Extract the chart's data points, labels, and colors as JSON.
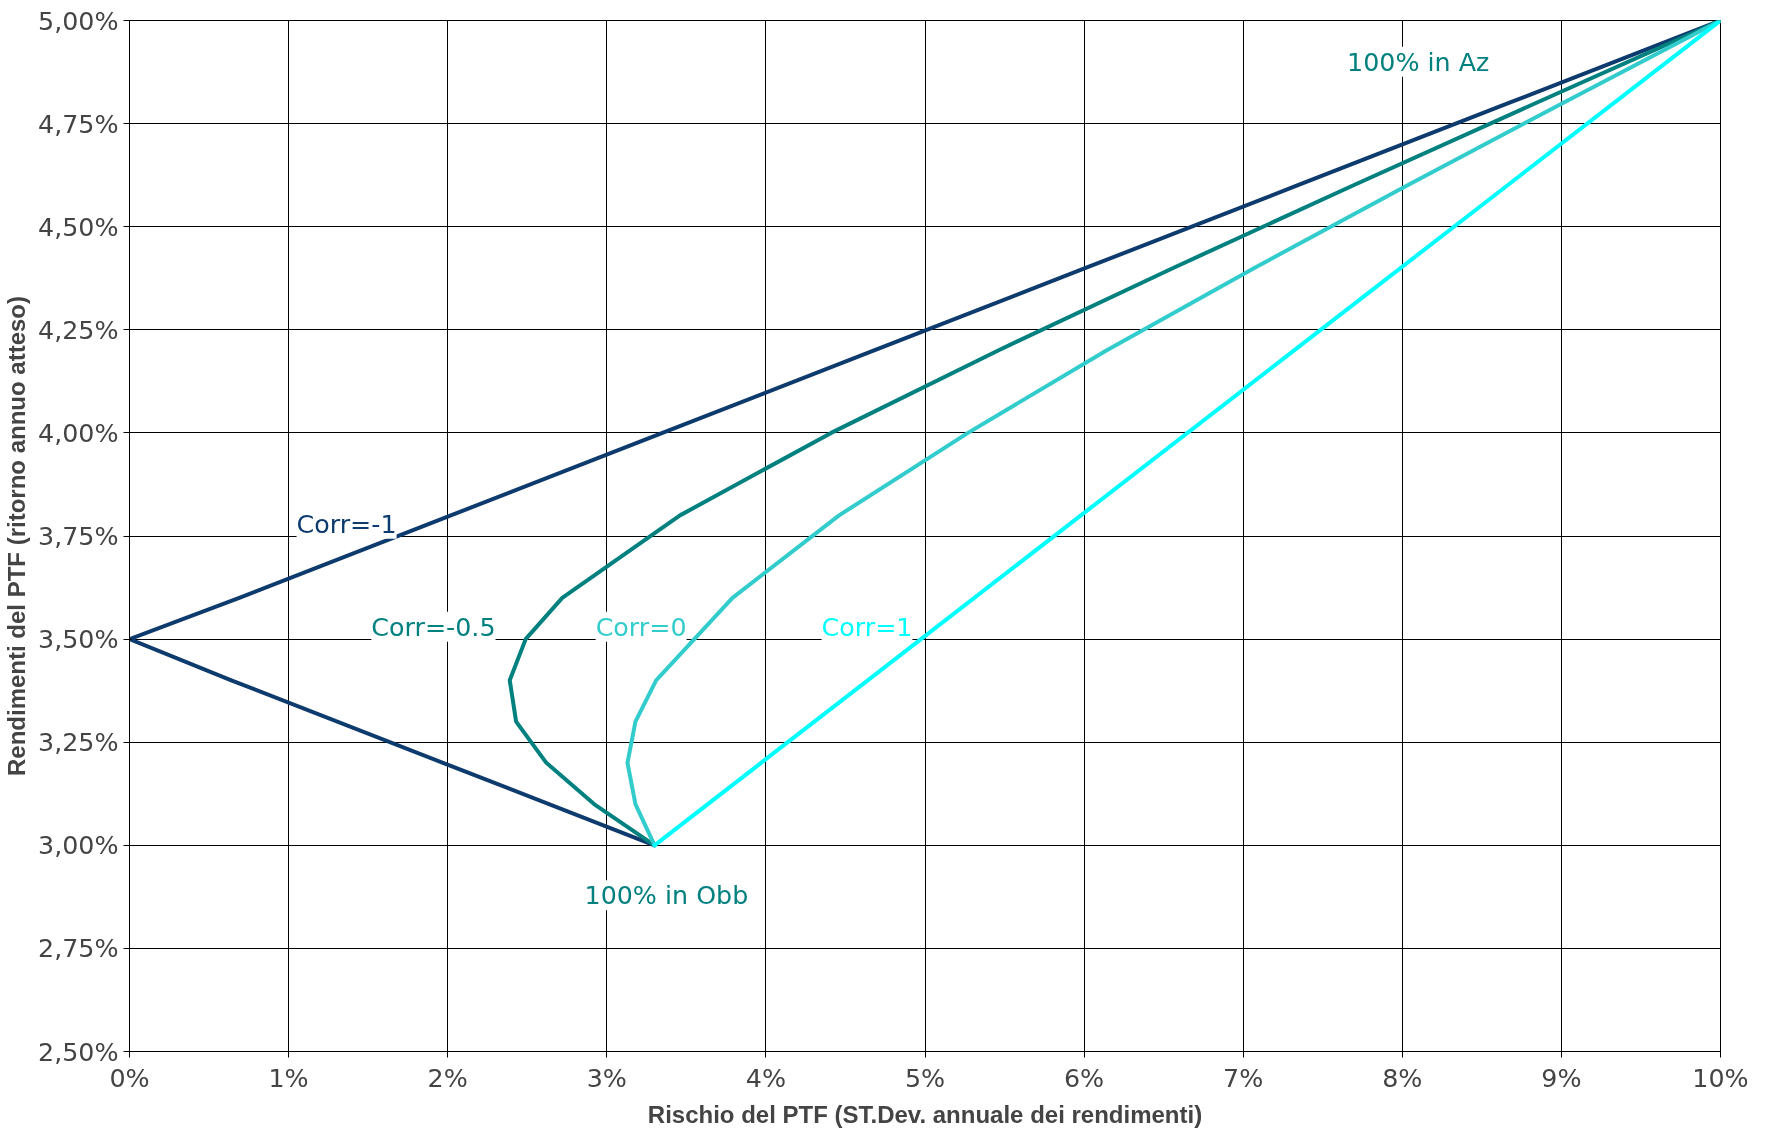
{
  "chart_data": {
    "type": "line",
    "xlabel": "Rischio del PTF (ST.Dev. annuale dei rendimenti)",
    "ylabel": "Rendimenti del PTF (ritorno annuo atteso)",
    "series": [
      {
        "name": "Corr=-1",
        "color": "#0d3b6e",
        "x": [
          3.3,
          1.97,
          0.64,
          0,
          0.69,
          2.02,
          3.35,
          4.68,
          6.01,
          7.34,
          8.67,
          10
        ],
        "values": [
          3.0,
          3.2,
          3.4,
          3.5,
          3.6,
          3.8,
          4.0,
          4.2,
          4.4,
          4.6,
          4.8,
          5.0
        ]
      },
      {
        "name": "Corr=-0.5",
        "color": "#00807f",
        "x": [
          3.3,
          2.92,
          2.62,
          2.43,
          2.39,
          2.49,
          2.72,
          3.46,
          4.41,
          5.46,
          6.56,
          7.69,
          8.84,
          10
        ],
        "values": [
          3.0,
          3.1,
          3.2,
          3.3,
          3.4,
          3.5,
          3.6,
          3.8,
          4.0,
          4.2,
          4.4,
          4.6,
          4.8,
          5.0
        ]
      },
      {
        "name": "Corr=0",
        "color": "#33cccc",
        "x": [
          3.3,
          3.18,
          3.13,
          3.18,
          3.31,
          3.79,
          4.46,
          5.27,
          6.14,
          7.07,
          8.03,
          9.01,
          10
        ],
        "values": [
          3.0,
          3.1,
          3.2,
          3.3,
          3.4,
          3.6,
          3.8,
          4.0,
          4.2,
          4.4,
          4.6,
          4.8,
          5.0
        ]
      },
      {
        "name": "Corr=1",
        "color": "#00ffff",
        "x": [
          3.3,
          4.64,
          5.98,
          7.32,
          8.66,
          10
        ],
        "values": [
          3.0,
          3.4,
          3.8,
          4.2,
          4.6,
          5.0
        ]
      }
    ],
    "annotations": [
      "100% in Az",
      {
        "text": "100% in Obb",
        "x": 3.3,
        "y": 3.0
      }
    ],
    "xlim": [
      0,
      10
    ],
    "xticks": [
      {
        "value": 0,
        "label": "0%"
      },
      {
        "value": 1,
        "label": "1%"
      },
      {
        "value": 2,
        "label": "2%"
      },
      {
        "value": 3,
        "label": "3%"
      },
      {
        "value": 4,
        "label": "4%"
      },
      {
        "value": 5,
        "label": "5%"
      },
      {
        "value": 6,
        "label": "6%"
      },
      {
        "value": 7,
        "label": "7%"
      },
      {
        "value": 8,
        "label": "8%"
      },
      {
        "value": 9,
        "label": "9%"
      },
      {
        "value": 10,
        "label": "10%"
      }
    ],
    "ylim": [
      2.5,
      5.0
    ],
    "yticks": [
      {
        "value": 2.5,
        "label": "2,50%"
      },
      {
        "value": 2.75,
        "label": "2,75%"
      },
      {
        "value": 3.0,
        "label": "3,00%"
      },
      {
        "value": 3.25,
        "label": "3,25%"
      },
      {
        "value": 3.5,
        "label": "3,50%"
      },
      {
        "value": 3.75,
        "label": "3,75%"
      },
      {
        "value": 4.0,
        "label": "4,00%"
      },
      {
        "value": 4.25,
        "label": "4,25%"
      },
      {
        "value": 4.5,
        "label": "4,50%"
      },
      {
        "value": 4.75,
        "label": "4,75%"
      },
      {
        "value": 5.0,
        "label": "5,00%"
      }
    ],
    "grid": true,
    "legend": false,
    "marker": "none",
    "line_style": "solid"
  }
}
